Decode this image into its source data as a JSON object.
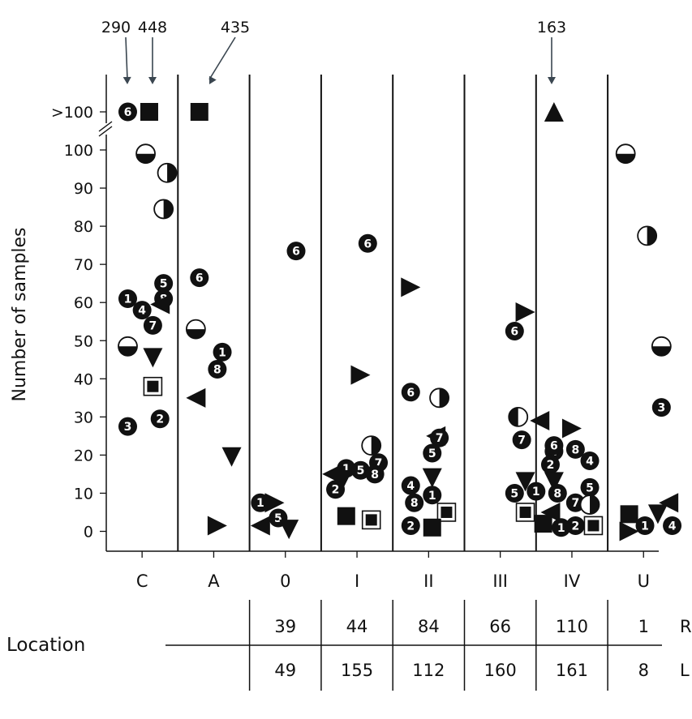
{
  "chart_data": {
    "type": "scatter",
    "ylabel": "Number of samples",
    "categories": [
      "C",
      "A",
      "0",
      "I",
      "II",
      "III",
      "IV",
      "U"
    ],
    "yticks": [
      0,
      10,
      20,
      30,
      40,
      50,
      60,
      70,
      80,
      90,
      100
    ],
    "break_tick_label": ">100",
    "ylim": [
      -5,
      112
    ],
    "break_value": 100,
    "offscale": [
      {
        "category": "C",
        "label": "290",
        "marker": "6"
      },
      {
        "category": "C",
        "label": "448",
        "marker": "square"
      },
      {
        "category": "A",
        "label": "435",
        "marker": "square"
      },
      {
        "category": "IV",
        "label": "163",
        "marker": "triangle-up"
      }
    ],
    "points": [
      {
        "category": "C",
        "offset": -0.2,
        "y": 101.5,
        "marker": "6"
      },
      {
        "category": "C",
        "offset": 0.1,
        "y": 101.5,
        "marker": "square"
      },
      {
        "category": "C",
        "offset": 0.05,
        "y": 99,
        "marker": "half-bottom"
      },
      {
        "category": "C",
        "offset": 0.35,
        "y": 94,
        "marker": "half-right"
      },
      {
        "category": "C",
        "offset": 0.3,
        "y": 84.5,
        "marker": "half-right"
      },
      {
        "category": "C",
        "offset": -0.2,
        "y": 61,
        "marker": "1"
      },
      {
        "category": "C",
        "offset": 0.3,
        "y": 65,
        "marker": "5"
      },
      {
        "category": "C",
        "offset": 0.3,
        "y": 61,
        "marker": "8"
      },
      {
        "category": "C",
        "offset": 0.25,
        "y": 59.5,
        "marker": "triangle-left"
      },
      {
        "category": "C",
        "offset": 0.0,
        "y": 58,
        "marker": "4"
      },
      {
        "category": "C",
        "offset": 0.15,
        "y": 54,
        "marker": "7"
      },
      {
        "category": "C",
        "offset": -0.2,
        "y": 48.5,
        "marker": "half-bottom"
      },
      {
        "category": "C",
        "offset": 0.15,
        "y": 45.5,
        "marker": "triangle-down"
      },
      {
        "category": "C",
        "offset": 0.15,
        "y": 38,
        "marker": "square-boxed"
      },
      {
        "category": "C",
        "offset": -0.2,
        "y": 27.5,
        "marker": "3"
      },
      {
        "category": "C",
        "offset": 0.25,
        "y": 29.5,
        "marker": "2"
      },
      {
        "category": "A",
        "offset": -0.2,
        "y": 101.5,
        "marker": "square"
      },
      {
        "category": "A",
        "offset": -0.2,
        "y": 66.5,
        "marker": "6"
      },
      {
        "category": "A",
        "offset": -0.25,
        "y": 53,
        "marker": "half-bottom"
      },
      {
        "category": "A",
        "offset": 0.12,
        "y": 47,
        "marker": "1"
      },
      {
        "category": "A",
        "offset": 0.05,
        "y": 42.5,
        "marker": "8"
      },
      {
        "category": "A",
        "offset": -0.25,
        "y": 35,
        "marker": "triangle-left"
      },
      {
        "category": "A",
        "offset": 0.25,
        "y": 19.5,
        "marker": "triangle-down"
      },
      {
        "category": "A",
        "offset": 0.05,
        "y": 1.5,
        "marker": "triangle-right"
      },
      {
        "category": "0",
        "offset": 0.15,
        "y": 73.5,
        "marker": "6"
      },
      {
        "category": "0",
        "offset": -0.35,
        "y": 7.5,
        "marker": "1"
      },
      {
        "category": "0",
        "offset": -0.15,
        "y": 7.5,
        "marker": "triangle-right"
      },
      {
        "category": "0",
        "offset": -0.35,
        "y": 1.5,
        "marker": "triangle-left"
      },
      {
        "category": "0",
        "offset": -0.1,
        "y": 3.5,
        "marker": "5"
      },
      {
        "category": "0",
        "offset": 0.05,
        "y": 0.5,
        "marker": "triangle-down"
      },
      {
        "category": "I",
        "offset": 0.15,
        "y": 75.5,
        "marker": "6"
      },
      {
        "category": "I",
        "offset": 0.05,
        "y": 41,
        "marker": "triangle-right"
      },
      {
        "category": "I",
        "offset": 0.2,
        "y": 22.5,
        "marker": "half-right"
      },
      {
        "category": "I",
        "offset": 0.3,
        "y": 18,
        "marker": "7"
      },
      {
        "category": "I",
        "offset": -0.15,
        "y": 16.5,
        "marker": "1"
      },
      {
        "category": "I",
        "offset": 0.05,
        "y": 16,
        "marker": "5"
      },
      {
        "category": "I",
        "offset": 0.25,
        "y": 15,
        "marker": "8"
      },
      {
        "category": "I",
        "offset": -0.35,
        "y": 15,
        "marker": "triangle-left"
      },
      {
        "category": "I",
        "offset": -0.2,
        "y": 13.5,
        "marker": "triangle-down"
      },
      {
        "category": "I",
        "offset": -0.3,
        "y": 11,
        "marker": "2"
      },
      {
        "category": "I",
        "offset": -0.15,
        "y": 4,
        "marker": "square"
      },
      {
        "category": "I",
        "offset": 0.2,
        "y": 3,
        "marker": "square-boxed"
      },
      {
        "category": "II",
        "offset": -0.25,
        "y": 64,
        "marker": "triangle-right"
      },
      {
        "category": "II",
        "offset": -0.25,
        "y": 36.5,
        "marker": "6"
      },
      {
        "category": "II",
        "offset": 0.15,
        "y": 35,
        "marker": "half-right"
      },
      {
        "category": "II",
        "offset": 0.1,
        "y": 25,
        "marker": "triangle-left"
      },
      {
        "category": "II",
        "offset": 0.15,
        "y": 24.5,
        "marker": "7"
      },
      {
        "category": "II",
        "offset": 0.05,
        "y": 20.5,
        "marker": "5"
      },
      {
        "category": "II",
        "offset": 0.05,
        "y": 14,
        "marker": "triangle-down"
      },
      {
        "category": "II",
        "offset": -0.25,
        "y": 12,
        "marker": "4"
      },
      {
        "category": "II",
        "offset": 0.05,
        "y": 9.5,
        "marker": "1"
      },
      {
        "category": "II",
        "offset": -0.2,
        "y": 7.5,
        "marker": "8"
      },
      {
        "category": "II",
        "offset": 0.25,
        "y": 5,
        "marker": "square-boxed"
      },
      {
        "category": "II",
        "offset": -0.25,
        "y": 1.5,
        "marker": "2"
      },
      {
        "category": "II",
        "offset": 0.05,
        "y": 1,
        "marker": "square"
      },
      {
        "category": "III",
        "offset": 0.35,
        "y": 57.5,
        "marker": "triangle-right"
      },
      {
        "category": "III",
        "offset": 0.2,
        "y": 52.5,
        "marker": "6"
      },
      {
        "category": "III",
        "offset": 0.25,
        "y": 30,
        "marker": "half-left"
      },
      {
        "category": "III",
        "offset": 0.55,
        "y": 29,
        "marker": "triangle-left"
      },
      {
        "category": "III",
        "offset": 0.3,
        "y": 24,
        "marker": "7"
      },
      {
        "category": "III",
        "offset": 0.75,
        "y": 21,
        "marker": "4"
      },
      {
        "category": "III",
        "offset": 0.7,
        "y": 17.5,
        "marker": "2"
      },
      {
        "category": "III",
        "offset": 0.35,
        "y": 13,
        "marker": "triangle-down"
      },
      {
        "category": "III",
        "offset": 0.5,
        "y": 10.5,
        "marker": "1"
      },
      {
        "category": "III",
        "offset": 0.2,
        "y": 10,
        "marker": "5"
      },
      {
        "category": "III",
        "offset": 0.8,
        "y": 10,
        "marker": "8"
      },
      {
        "category": "III",
        "offset": 0.35,
        "y": 5,
        "marker": "square-boxed"
      },
      {
        "category": "III",
        "offset": 0.6,
        "y": 2,
        "marker": "square"
      },
      {
        "category": "IV",
        "offset": -0.25,
        "y": 101,
        "marker": "triangle-up"
      },
      {
        "category": "IV",
        "offset": 0.0,
        "y": 27,
        "marker": "triangle-right"
      },
      {
        "category": "IV",
        "offset": -0.25,
        "y": 22.5,
        "marker": "6"
      },
      {
        "category": "IV",
        "offset": 0.05,
        "y": 21.5,
        "marker": "8"
      },
      {
        "category": "IV",
        "offset": 0.25,
        "y": 18.5,
        "marker": "4"
      },
      {
        "category": "IV",
        "offset": -0.25,
        "y": 13,
        "marker": "triangle-down"
      },
      {
        "category": "IV",
        "offset": 0.25,
        "y": 11.5,
        "marker": "5"
      },
      {
        "category": "IV",
        "offset": 0.05,
        "y": 7.5,
        "marker": "7"
      },
      {
        "category": "IV",
        "offset": 0.25,
        "y": 7,
        "marker": "half-right"
      },
      {
        "category": "IV",
        "offset": -0.3,
        "y": 5,
        "marker": "triangle-left"
      },
      {
        "category": "IV",
        "offset": -0.15,
        "y": 1,
        "marker": "1"
      },
      {
        "category": "IV",
        "offset": 0.05,
        "y": 1.5,
        "marker": "2"
      },
      {
        "category": "IV",
        "offset": 0.3,
        "y": 1.5,
        "marker": "square-boxed"
      },
      {
        "category": "U",
        "offset": -0.25,
        "y": 99,
        "marker": "half-bottom"
      },
      {
        "category": "U",
        "offset": 0.05,
        "y": 77.5,
        "marker": "half-right"
      },
      {
        "category": "U",
        "offset": 0.25,
        "y": 48.5,
        "marker": "half-bottom"
      },
      {
        "category": "U",
        "offset": 0.25,
        "y": 32.5,
        "marker": "3"
      },
      {
        "category": "U",
        "offset": -0.2,
        "y": 4.5,
        "marker": "square"
      },
      {
        "category": "U",
        "offset": -0.2,
        "y": 0,
        "marker": "triangle-right"
      },
      {
        "category": "U",
        "offset": 0.02,
        "y": 1.5,
        "marker": "1"
      },
      {
        "category": "U",
        "offset": 0.2,
        "y": 4.5,
        "marker": "triangle-down"
      },
      {
        "category": "U",
        "offset": 0.35,
        "y": 7.5,
        "marker": "triangle-left"
      },
      {
        "category": "U",
        "offset": 0.4,
        "y": 1.5,
        "marker": "4"
      }
    ],
    "table": {
      "title": "Location",
      "rows": [
        {
          "side": "R",
          "values": [
            "39",
            "44",
            "84",
            "66",
            "110",
            "1"
          ]
        },
        {
          "side": "L",
          "values": [
            "49",
            "155",
            "112",
            "160",
            "161",
            "8"
          ]
        }
      ],
      "column_categories": [
        "0",
        "I",
        "II",
        "III",
        "IV",
        "U"
      ]
    }
  }
}
